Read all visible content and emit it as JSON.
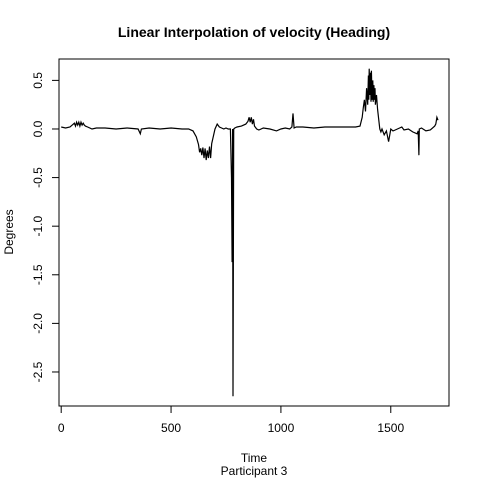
{
  "chart_data": {
    "type": "line",
    "title": "Linear Interpolation of velocity (Heading)",
    "xlabel": "Time",
    "ylabel": "Degrees",
    "subtitle": "Participant  3",
    "xlim": [
      -10,
      1765
    ],
    "ylim": [
      -2.85,
      0.72
    ],
    "xticks": [
      0,
      500,
      1000,
      1500
    ],
    "yticks": [
      0.5,
      0.0,
      -0.5,
      -1.0,
      -1.5,
      -2.0,
      -2.5
    ],
    "xtick_labels": [
      "0",
      "500",
      "1000",
      "1500"
    ],
    "ytick_labels": [
      "0.5",
      "0.0",
      "-0.5",
      "-1.0",
      "-1.5",
      "-2.0",
      "-2.5"
    ],
    "grid": false,
    "series": [
      {
        "color": "#000000",
        "x": [
          0,
          20,
          40,
          50,
          60,
          65,
          70,
          75,
          80,
          85,
          90,
          95,
          100,
          105,
          110,
          120,
          140,
          160,
          200,
          250,
          300,
          350,
          360,
          365,
          400,
          450,
          500,
          550,
          580,
          600,
          615,
          625,
          630,
          635,
          640,
          645,
          650,
          655,
          660,
          665,
          670,
          675,
          680,
          685,
          690,
          700,
          710,
          720,
          730,
          740,
          750,
          760,
          770,
          775,
          778,
          780,
          782,
          785,
          790,
          800,
          820,
          840,
          850,
          855,
          860,
          865,
          870,
          875,
          880,
          890,
          900,
          920,
          950,
          980,
          1000,
          1020,
          1040,
          1050,
          1055,
          1060,
          1070,
          1100,
          1150,
          1200,
          1250,
          1300,
          1340,
          1360,
          1370,
          1375,
          1380,
          1385,
          1390,
          1395,
          1398,
          1400,
          1402,
          1405,
          1408,
          1410,
          1412,
          1415,
          1418,
          1420,
          1423,
          1425,
          1428,
          1430,
          1435,
          1440,
          1445,
          1450,
          1455,
          1460,
          1470,
          1480,
          1490,
          1500,
          1510,
          1520,
          1530,
          1540,
          1550,
          1560,
          1580,
          1600,
          1620,
          1625,
          1628,
          1630,
          1640,
          1660,
          1680,
          1700,
          1705,
          1710,
          1715
        ],
        "y": [
          0.02,
          0.01,
          0.02,
          0.04,
          0.06,
          0.03,
          0.07,
          0.04,
          0.07,
          0.03,
          0.07,
          0.04,
          0.06,
          0.04,
          0.03,
          0.02,
          0.0,
          0.01,
          0.01,
          0.0,
          0.01,
          0.0,
          -0.05,
          0.0,
          0.01,
          0.0,
          0.01,
          0.0,
          0.0,
          -0.02,
          -0.08,
          -0.16,
          -0.24,
          -0.2,
          -0.27,
          -0.19,
          -0.3,
          -0.2,
          -0.32,
          -0.22,
          -0.3,
          -0.18,
          -0.3,
          -0.15,
          -0.1,
          0.0,
          0.05,
          0.02,
          0.01,
          0.0,
          0.01,
          0.0,
          0.0,
          -0.5,
          -1.37,
          0.0,
          -2.75,
          0.0,
          0.01,
          0.02,
          0.03,
          0.05,
          0.08,
          0.12,
          0.07,
          0.12,
          0.05,
          0.1,
          0.03,
          0.0,
          -0.01,
          0.01,
          0.0,
          -0.02,
          0.0,
          0.01,
          0.0,
          0.02,
          0.16,
          0.01,
          0.02,
          0.02,
          0.01,
          0.02,
          0.02,
          0.02,
          0.02,
          0.03,
          0.12,
          0.22,
          0.3,
          0.18,
          0.42,
          0.25,
          0.55,
          0.3,
          0.62,
          0.35,
          0.58,
          0.28,
          0.6,
          0.3,
          0.5,
          0.28,
          0.45,
          0.3,
          0.42,
          0.25,
          0.35,
          0.2,
          0.1,
          0.0,
          -0.03,
          0.0,
          -0.06,
          -0.02,
          -0.13,
          0.0,
          -0.02,
          -0.01,
          0.0,
          0.01,
          0.02,
          -0.01,
          0.0,
          -0.03,
          -0.05,
          -0.02,
          -0.27,
          0.0,
          0.01,
          -0.02,
          -0.01,
          0.03,
          0.05,
          0.12,
          0.09
        ]
      }
    ]
  }
}
